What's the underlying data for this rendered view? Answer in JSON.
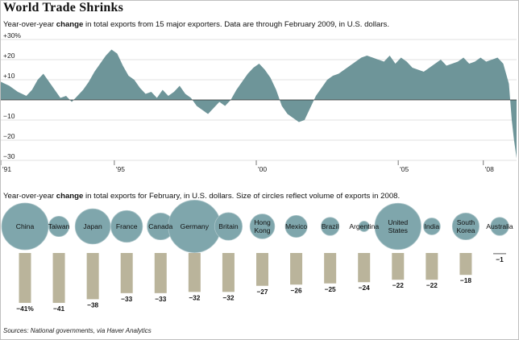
{
  "title": "World Trade Shrinks",
  "subtitle1": {
    "pre": "Year-over-year ",
    "bold": "change",
    "post": " in total exports from 15 major exporters. Data are through February 2009, in U.S. dollars."
  },
  "subtitle2": {
    "pre": "Year-over-year ",
    "bold": "change",
    "post": " in total exports for February, in U.S. dollars. Size of circles reflect volume of exports in 2008."
  },
  "source": "Sources: National governments, via Haver Analytics",
  "colors": {
    "area": "#6e9599",
    "circle": "#7fa6ac",
    "circle_stroke": "#a9c3c7",
    "bar": "#bab49b",
    "grid": "#d6d6d6",
    "zero": "#333333"
  },
  "chart_data": [
    {
      "type": "area",
      "title": "",
      "ylim": [
        -30,
        30
      ],
      "yticks": [
        {
          "value": 30,
          "label": "+30%"
        },
        {
          "value": 20,
          "label": "+20"
        },
        {
          "value": 10,
          "label": "+10"
        },
        {
          "value": 0,
          "label": ""
        },
        {
          "value": -10,
          "label": "−10"
        },
        {
          "value": -20,
          "label": "−20"
        },
        {
          "value": -30,
          "label": "−30"
        }
      ],
      "xlim": [
        1991.0,
        2009.17
      ],
      "xticks": [
        {
          "value": 1991,
          "label": "'91"
        },
        {
          "value": 1995,
          "label": "'95"
        },
        {
          "value": 2000,
          "label": "'00"
        },
        {
          "value": 2005,
          "label": "'05"
        },
        {
          "value": 2008,
          "label": "'08"
        }
      ],
      "grid": true,
      "series": [
        {
          "x": [
            1991.0,
            1991.3,
            1991.6,
            1991.9,
            1992.1,
            1992.3,
            1992.5,
            1992.7,
            1992.9,
            1993.1,
            1993.3,
            1993.5,
            1993.7,
            1993.9,
            1994.1,
            1994.3,
            1994.5,
            1994.7,
            1994.9,
            1995.1,
            1995.3,
            1995.5,
            1995.7,
            1995.9,
            1996.1,
            1996.3,
            1996.5,
            1996.7,
            1996.9,
            1997.1,
            1997.3,
            1997.5,
            1997.7,
            1997.9,
            1998.1,
            1998.3,
            1998.5,
            1998.7,
            1998.9,
            1999.1,
            1999.3,
            1999.5,
            1999.7,
            1999.9,
            2000.1,
            2000.3,
            2000.5,
            2000.7,
            2000.9,
            2001.1,
            2001.3,
            2001.5,
            2001.7,
            2001.9,
            2002.1,
            2002.3,
            2002.5,
            2002.7,
            2002.9,
            2003.1,
            2003.3,
            2003.5,
            2003.7,
            2003.9,
            2004.1,
            2004.3,
            2004.5,
            2004.7,
            2004.9,
            2005.1,
            2005.3,
            2005.5,
            2005.7,
            2005.9,
            2006.1,
            2006.3,
            2006.5,
            2006.7,
            2006.9,
            2007.1,
            2007.3,
            2007.5,
            2007.7,
            2007.9,
            2008.1,
            2008.3,
            2008.5,
            2008.7,
            2008.9,
            2009.0,
            2009.08,
            2009.17
          ],
          "values": [
            9,
            7,
            4,
            2,
            5,
            10,
            13,
            9,
            5,
            1,
            2,
            -1,
            2,
            5,
            9,
            14,
            18,
            22,
            25,
            23,
            17,
            12,
            10,
            6,
            3,
            4,
            1,
            5,
            2,
            4,
            7,
            3,
            1,
            -3,
            -5,
            -7,
            -4,
            -1,
            -3,
            0,
            5,
            9,
            13,
            16,
            18,
            15,
            11,
            5,
            -3,
            -7,
            -9,
            -11,
            -10,
            -4,
            2,
            6,
            10,
            12,
            13,
            15,
            17,
            19,
            21,
            22,
            21,
            20,
            19,
            22,
            18,
            21,
            19,
            16,
            15,
            14,
            16,
            18,
            20,
            17,
            18,
            19,
            21,
            18,
            19,
            21,
            19,
            20,
            21,
            18,
            8,
            -10,
            -20,
            -29
          ]
        }
      ]
    },
    {
      "type": "bar",
      "title": "",
      "categories": [
        "China",
        "Taiwan",
        "Japan",
        "France",
        "Canada",
        "Germany",
        "Britain",
        "Hong Kong",
        "Mexico",
        "Brazil",
        "Argentina",
        "United States",
        "India",
        "South Korea",
        "Australia"
      ],
      "category_lines": [
        [
          "China"
        ],
        [
          "Taiwan"
        ],
        [
          "Japan"
        ],
        [
          "France"
        ],
        [
          "Canada"
        ],
        [
          "Germany"
        ],
        [
          "Britain"
        ],
        [
          "Hong",
          "Kong"
        ],
        [
          "Mexico"
        ],
        [
          "Brazil"
        ],
        [
          "Argentina"
        ],
        [
          "United",
          "States"
        ],
        [
          "India"
        ],
        [
          "South",
          "Korea"
        ],
        [
          "Australia"
        ]
      ],
      "values": [
        -41,
        -41,
        -38,
        -33,
        -33,
        -32,
        -32,
        -27,
        -26,
        -25,
        -24,
        -22,
        -22,
        -18,
        -1
      ],
      "value_labels": [
        "−41%",
        "−41",
        "−38",
        "−33",
        "−33",
        "−32",
        "−32",
        "−27",
        "−26",
        "−25",
        "−24",
        "−22",
        "−22",
        "−18",
        "−1"
      ],
      "export_volume_relative": [
        1.0,
        0.19,
        0.57,
        0.46,
        0.33,
        1.26,
        0.35,
        0.28,
        0.22,
        0.15,
        0.05,
        0.98,
        0.13,
        0.33,
        0.15
      ]
    }
  ]
}
